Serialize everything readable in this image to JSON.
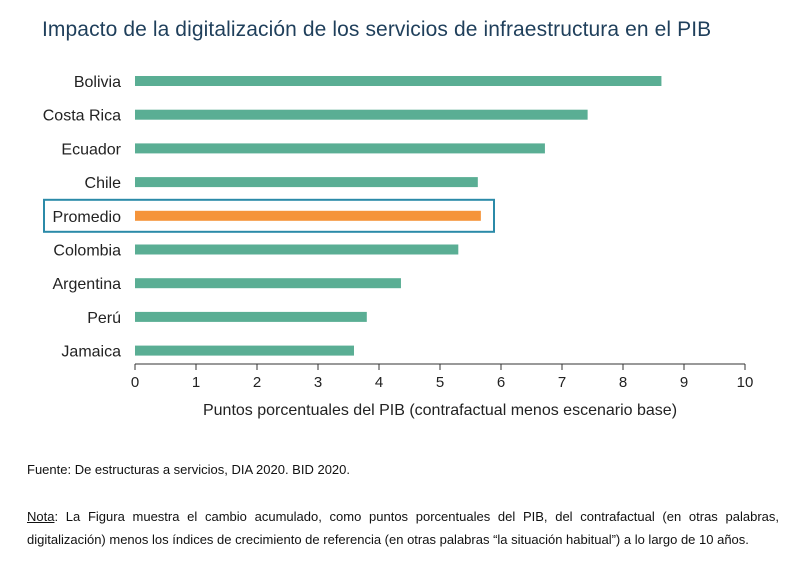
{
  "title": "Impacto de la digitalización de los servicios de infraestructura en el PIB",
  "chart_data": {
    "type": "bar",
    "orientation": "horizontal",
    "categories": [
      "Bolivia",
      "Costa Rica",
      "Ecuador",
      "Chile",
      "Promedio",
      "Colombia",
      "Argentina",
      "Perú",
      "Jamaica"
    ],
    "values": [
      8.63,
      7.42,
      6.72,
      5.62,
      5.67,
      5.3,
      4.36,
      3.8,
      3.59
    ],
    "xlabel": "Puntos porcentuales del PIB (contrafactual menos escenario base)",
    "ylabel": "",
    "xlim": [
      0,
      10
    ],
    "xticks": [
      "0",
      "1",
      "2",
      "3",
      "4",
      "5",
      "6",
      "7",
      "8",
      "9",
      "10"
    ],
    "grid": false,
    "highlight_category": "Promedio",
    "colors": {
      "bar": "#5aae94",
      "highlight": "#f5943a",
      "highlight_box": "#2b8aa8"
    }
  },
  "source": "Fuente: De estructuras a servicios, DIA 2020. BID 2020.",
  "note": {
    "label": "Nota",
    "text": ": La Figura muestra el cambio acumulado, como puntos porcentuales del PIB, del contrafactual (en otras palabras, digitalización) menos los índices de crecimiento de referencia (en otras palabras “la situación habitual”) a lo largo de 10 años."
  }
}
